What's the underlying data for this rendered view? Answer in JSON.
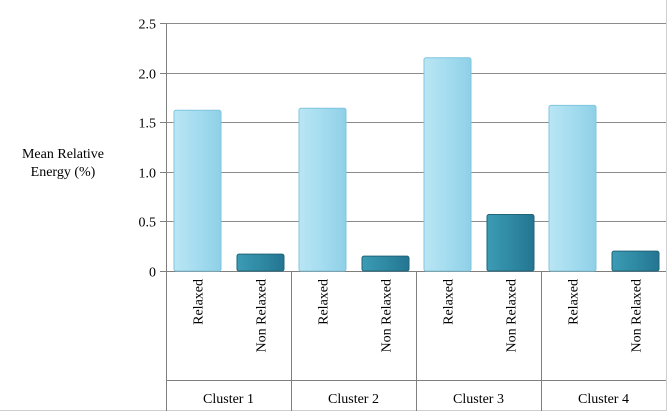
{
  "chart_data": {
    "type": "bar",
    "title": "",
    "ylabel_lines": [
      "Mean Relative",
      "Energy (%)"
    ],
    "ylim": [
      0,
      2.5
    ],
    "yticks": [
      "0",
      "0.5",
      "1.0",
      "1.5",
      "2.0",
      "2.5"
    ],
    "ytick_values": [
      0,
      0.5,
      1.0,
      1.5,
      2.0,
      2.5
    ],
    "grid": true,
    "legend": "none",
    "groups": [
      {
        "label": "Cluster 1",
        "bars": [
          {
            "category": "Relaxed",
            "value": 1.62
          },
          {
            "category": "Non Relaxed",
            "value": 0.17
          }
        ]
      },
      {
        "label": "Cluster 2",
        "bars": [
          {
            "category": "Relaxed",
            "value": 1.64
          },
          {
            "category": "Non Relaxed",
            "value": 0.15
          }
        ]
      },
      {
        "label": "Cluster 3",
        "bars": [
          {
            "category": "Relaxed",
            "value": 2.15
          },
          {
            "category": "Non Relaxed",
            "value": 0.57
          }
        ]
      },
      {
        "label": "Cluster 4",
        "bars": [
          {
            "category": "Relaxed",
            "value": 1.67
          },
          {
            "category": "Non Relaxed",
            "value": 0.2
          }
        ]
      }
    ],
    "colors": {
      "Relaxed": "#a8def0",
      "Relaxed_edge": "#7fc6dd",
      "Non Relaxed": "#2f8aa3",
      "Non Relaxed_edge": "#1f6478",
      "grid": "#8c8c8c",
      "axis": "#7f7f7f"
    }
  }
}
